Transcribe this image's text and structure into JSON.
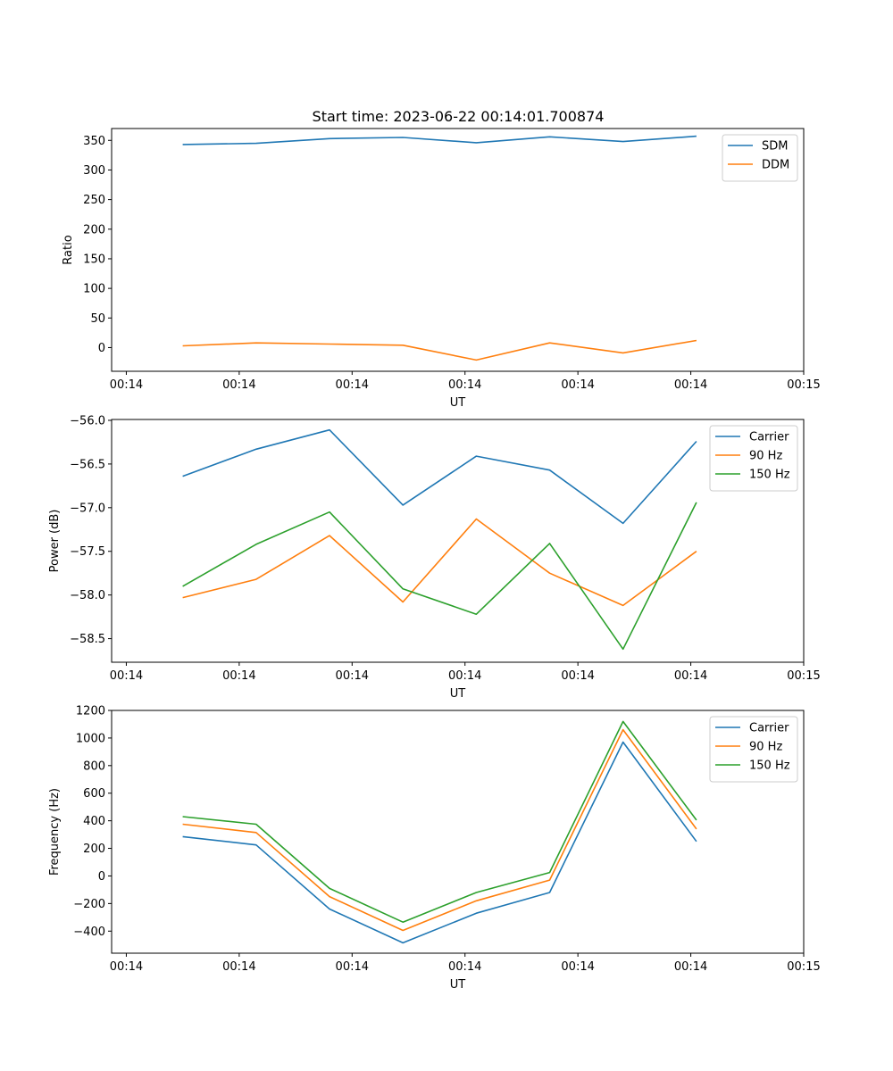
{
  "title": "Start time: 2023-06-22 00:14:01.700874",
  "chart_data": [
    {
      "type": "line",
      "xlabel": "UT",
      "ylabel": "Ratio",
      "x_ticks": [
        0,
        1,
        2,
        3,
        4,
        5,
        6
      ],
      "x_tick_labels": [
        "00:14",
        "00:14",
        "00:14",
        "00:14",
        "00:14",
        "00:14",
        "00:15"
      ],
      "xlim": [
        -0.13,
        6.0
      ],
      "ylim": [
        -40,
        370
      ],
      "y_ticks": [
        0,
        50,
        100,
        150,
        200,
        250,
        300,
        350
      ],
      "y_tick_labels": [
        "0",
        "50",
        "100",
        "150",
        "200",
        "250",
        "300",
        "350"
      ],
      "legend": "top-right",
      "x": [
        0.5,
        1.15,
        1.8,
        2.45,
        3.1,
        3.75,
        4.4,
        5.05
      ],
      "series": [
        {
          "name": "SDM",
          "color": "#1f77b4",
          "values": [
            343,
            345,
            353,
            355,
            346,
            356,
            348,
            357
          ]
        },
        {
          "name": "DDM",
          "color": "#ff7f0e",
          "values": [
            3,
            8,
            6,
            4,
            -21,
            8,
            -9,
            12
          ]
        }
      ]
    },
    {
      "type": "line",
      "xlabel": "UT",
      "ylabel": "Power (dB)",
      "x_ticks": [
        0,
        1,
        2,
        3,
        4,
        5,
        6
      ],
      "x_tick_labels": [
        "00:14",
        "00:14",
        "00:14",
        "00:14",
        "00:14",
        "00:14",
        "00:15"
      ],
      "xlim": [
        -0.13,
        6.0
      ],
      "ylim": [
        -58.77,
        -55.99
      ],
      "y_ticks": [
        -56.0,
        -56.5,
        -57.0,
        -57.5,
        -58.0,
        -58.5
      ],
      "y_tick_labels": [
        "−56.0",
        "−56.5",
        "−57.0",
        "−57.5",
        "−58.0",
        "−58.5"
      ],
      "legend": "top-right",
      "x": [
        0.5,
        1.15,
        1.8,
        2.45,
        3.1,
        3.75,
        4.4,
        5.05
      ],
      "series": [
        {
          "name": "Carrier",
          "color": "#1f77b4",
          "values": [
            -56.64,
            -56.33,
            -56.11,
            -56.97,
            -56.41,
            -56.57,
            -57.18,
            -56.24
          ]
        },
        {
          "name": "90 Hz",
          "color": "#ff7f0e",
          "values": [
            -58.03,
            -57.82,
            -57.32,
            -58.08,
            -57.13,
            -57.75,
            -58.12,
            -57.5
          ]
        },
        {
          "name": "150 Hz",
          "color": "#2ca02c",
          "values": [
            -57.9,
            -57.42,
            -57.05,
            -57.93,
            -58.22,
            -57.41,
            -58.62,
            -56.94
          ]
        }
      ]
    },
    {
      "type": "line",
      "xlabel": "UT",
      "ylabel": "Frequency (Hz)",
      "x_ticks": [
        0,
        1,
        2,
        3,
        4,
        5,
        6
      ],
      "x_tick_labels": [
        "00:14",
        "00:14",
        "00:14",
        "00:14",
        "00:14",
        "00:14",
        "00:15"
      ],
      "xlim": [
        -0.13,
        6.0
      ],
      "ylim": [
        -560,
        1200
      ],
      "y_ticks": [
        -400,
        -200,
        0,
        200,
        400,
        600,
        800,
        1000,
        1200
      ],
      "y_tick_labels": [
        "−400",
        "−200",
        "0",
        "200",
        "400",
        "600",
        "800",
        "1000",
        "1200"
      ],
      "legend": "top-right",
      "x": [
        0.5,
        1.15,
        1.8,
        2.45,
        3.1,
        3.75,
        4.4,
        5.05
      ],
      "series": [
        {
          "name": "Carrier",
          "color": "#1f77b4",
          "values": [
            285,
            225,
            -240,
            -485,
            -270,
            -120,
            970,
            250
          ]
        },
        {
          "name": "90 Hz",
          "color": "#ff7f0e",
          "values": [
            375,
            315,
            -150,
            -395,
            -180,
            -30,
            1060,
            340
          ]
        },
        {
          "name": "150 Hz",
          "color": "#2ca02c",
          "values": [
            430,
            375,
            -90,
            -335,
            -120,
            25,
            1120,
            405
          ]
        }
      ]
    }
  ]
}
